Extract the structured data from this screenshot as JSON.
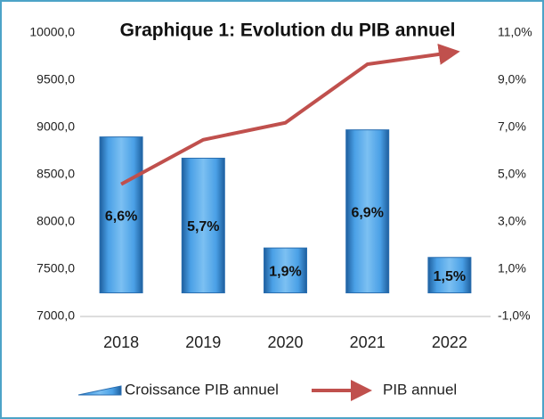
{
  "chart_data": {
    "type": "bar",
    "title": "Graphique 1: Evolution du PIB annuel",
    "categories": [
      "2018",
      "2019",
      "2020",
      "2021",
      "2022"
    ],
    "series": [
      {
        "name": "Croissance PIB annuel",
        "type": "bar",
        "axis": "y2",
        "color": "#3a8bd4",
        "values": [
          6.6,
          5.7,
          1.9,
          6.9,
          1.5
        ],
        "value_labels": [
          "6,6%",
          "5,7%",
          "1,9%",
          "6,9%",
          "1,5%"
        ]
      },
      {
        "name": "PIB annuel",
        "type": "line",
        "color": "#c0504d",
        "values": [
          8400,
          8870,
          9050,
          9670,
          9790
        ]
      }
    ],
    "ylim": [
      7000,
      10000
    ],
    "yticks": [
      {
        "value": 7000,
        "label": "7000,0"
      },
      {
        "value": 7500,
        "label": "7500,0"
      },
      {
        "value": 8000,
        "label": "8000,0"
      },
      {
        "value": 8500,
        "label": "8500,0"
      },
      {
        "value": 9000,
        "label": "9000,0"
      },
      {
        "value": 9500,
        "label": "9500,0"
      },
      {
        "value": 10000,
        "label": "10000,0"
      }
    ],
    "y2lim": [
      -1,
      11
    ],
    "y2ticks": [
      {
        "value": -1,
        "label": "-1,0%"
      },
      {
        "value": 1,
        "label": "1,0%"
      },
      {
        "value": 3,
        "label": "3,0%"
      },
      {
        "value": 5,
        "label": "5,0%"
      },
      {
        "value": 7,
        "label": "7,0%"
      },
      {
        "value": 9,
        "label": "9,0%"
      },
      {
        "value": 11,
        "label": "11,0%"
      }
    ],
    "legend": "bottom"
  }
}
